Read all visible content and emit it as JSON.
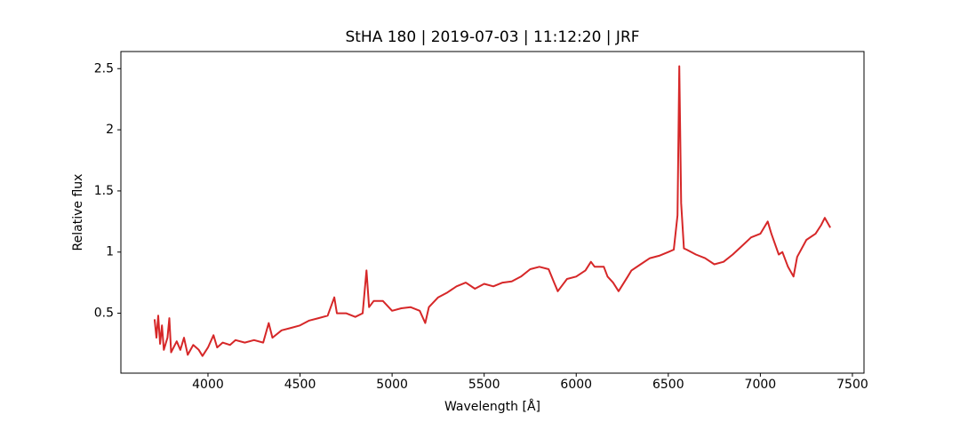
{
  "chart_data": {
    "type": "line",
    "title": "StHA 180 | 2019-07-03 | 11:12:20 | JRF",
    "x_label": "Wavelength [Å]",
    "y_label": "Relative flux",
    "xlim": [
      3527,
      7563
    ],
    "ylim": [
      0.01,
      2.64
    ],
    "xticks": [
      4000,
      4500,
      5000,
      5500,
      6000,
      6500,
      7000,
      7500
    ],
    "yticks": [
      0.5,
      1.0,
      1.5,
      2.0,
      2.5
    ],
    "series": [
      {
        "color": "#d62728",
        "x": [
          3710,
          3720,
          3730,
          3740,
          3750,
          3760,
          3780,
          3790,
          3800,
          3830,
          3850,
          3870,
          3890,
          3920,
          3950,
          3970,
          4000,
          4030,
          4050,
          4080,
          4120,
          4150,
          4200,
          4250,
          4300,
          4330,
          4350,
          4400,
          4450,
          4500,
          4550,
          4600,
          4650,
          4686,
          4700,
          4750,
          4800,
          4840,
          4861,
          4875,
          4900,
          4950,
          5000,
          5050,
          5100,
          5150,
          5180,
          5200,
          5250,
          5300,
          5350,
          5400,
          5450,
          5500,
          5550,
          5600,
          5650,
          5700,
          5750,
          5800,
          5850,
          5880,
          5900,
          5950,
          6000,
          6050,
          6080,
          6100,
          6150,
          6170,
          6200,
          6230,
          6280,
          6300,
          6350,
          6400,
          6450,
          6500,
          6530,
          6550,
          6560,
          6570,
          6585,
          6600,
          6650,
          6700,
          6750,
          6800,
          6850,
          6900,
          6950,
          7000,
          7040,
          7060,
          7100,
          7120,
          7150,
          7180,
          7200,
          7250,
          7300,
          7330,
          7350,
          7380
        ],
        "values": [
          0.45,
          0.3,
          0.48,
          0.25,
          0.4,
          0.2,
          0.3,
          0.46,
          0.18,
          0.27,
          0.2,
          0.3,
          0.16,
          0.24,
          0.2,
          0.15,
          0.22,
          0.32,
          0.22,
          0.26,
          0.24,
          0.28,
          0.26,
          0.28,
          0.26,
          0.42,
          0.3,
          0.36,
          0.38,
          0.4,
          0.44,
          0.46,
          0.48,
          0.63,
          0.5,
          0.5,
          0.47,
          0.5,
          0.85,
          0.55,
          0.6,
          0.6,
          0.52,
          0.54,
          0.55,
          0.52,
          0.42,
          0.55,
          0.63,
          0.67,
          0.72,
          0.75,
          0.7,
          0.74,
          0.72,
          0.75,
          0.76,
          0.8,
          0.86,
          0.88,
          0.86,
          0.75,
          0.68,
          0.78,
          0.8,
          0.85,
          0.92,
          0.88,
          0.88,
          0.8,
          0.75,
          0.68,
          0.8,
          0.85,
          0.9,
          0.95,
          0.97,
          1.0,
          1.02,
          1.3,
          2.52,
          1.4,
          1.03,
          1.02,
          0.98,
          0.95,
          0.9,
          0.92,
          0.98,
          1.05,
          1.12,
          1.15,
          1.25,
          1.15,
          0.98,
          1.0,
          0.88,
          0.8,
          0.96,
          1.1,
          1.15,
          1.22,
          1.28,
          1.2
        ]
      }
    ]
  }
}
